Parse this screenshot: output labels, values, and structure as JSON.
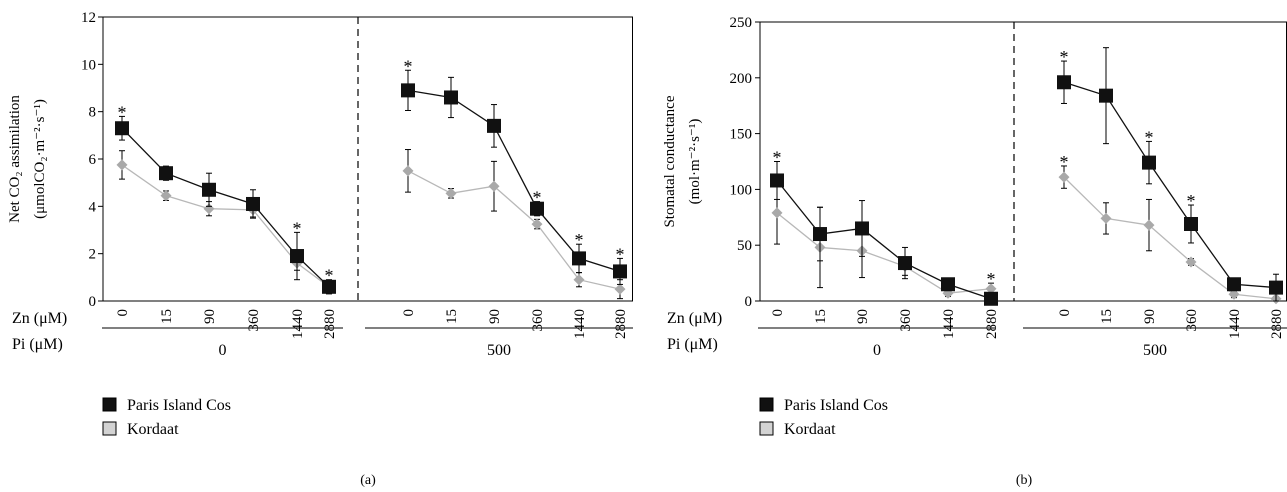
{
  "legend": [
    {
      "label": "Paris Island Cos",
      "color": "#111111"
    },
    {
      "label": "Kordaat",
      "color": "#d3d3d3"
    }
  ],
  "chart_data": [
    {
      "type": "line",
      "panel_label": "(a)",
      "ylabel_line1": "Net CO₂ assimilation",
      "ylabel_line2": "(μmolCO₂·m⁻²·s⁻¹)",
      "ylim": [
        0,
        12
      ],
      "yticks": [
        0,
        2,
        4,
        6,
        8,
        10,
        12
      ],
      "zn_label": "Zn (μM)",
      "pi_label": "Pi (μM)",
      "groups": [
        {
          "pi": "0",
          "categories": [
            "0",
            "15",
            "90",
            "360",
            "1440",
            "2880"
          ],
          "series": [
            {
              "name": "Paris Island Cos",
              "values": [
                7.3,
                5.4,
                4.7,
                4.1,
                1.9,
                0.6
              ],
              "errors": [
                0.5,
                0.3,
                0.7,
                0.6,
                1.0,
                0.3
              ]
            },
            {
              "name": "Kordaat",
              "values": [
                5.75,
                4.45,
                3.9,
                3.85,
                1.6,
                0.6
              ],
              "errors": [
                0.6,
                0.2,
                0.3,
                0.3,
                0.3,
                0.2
              ]
            }
          ],
          "significant": [
            true,
            false,
            false,
            false,
            true,
            true
          ]
        },
        {
          "pi": "500",
          "categories": [
            "0",
            "15",
            "90",
            "360",
            "1440",
            "2880"
          ],
          "series": [
            {
              "name": "Paris Island Cos",
              "values": [
                8.9,
                8.6,
                7.4,
                3.9,
                1.8,
                1.25
              ],
              "errors": [
                0.85,
                0.85,
                0.9,
                0.3,
                0.6,
                0.55
              ]
            },
            {
              "name": "Kordaat",
              "values": [
                5.5,
                4.55,
                4.85,
                3.25,
                0.9,
                0.5
              ],
              "errors": [
                0.9,
                0.2,
                1.05,
                0.2,
                0.3,
                0.4
              ]
            }
          ],
          "significant": [
            true,
            false,
            false,
            true,
            true,
            true
          ]
        }
      ]
    },
    {
      "type": "line",
      "panel_label": "(b)",
      "ylabel_line1": "Stomatal conductance",
      "ylabel_line2": "(mol·m⁻²·s⁻¹)",
      "ylim": [
        0,
        250
      ],
      "yticks": [
        0,
        50,
        100,
        150,
        200,
        250
      ],
      "zn_label": "Zn (μM)",
      "pi_label": "Pi (μM)",
      "groups": [
        {
          "pi": "0",
          "categories": [
            "0",
            "15",
            "90",
            "360",
            "1440",
            "2880"
          ],
          "series": [
            {
              "name": "Paris Island Cos",
              "values": [
                108,
                60,
                65,
                34,
                15,
                2
              ],
              "errors": [
                17,
                24,
                25,
                14,
                5,
                3
              ]
            },
            {
              "name": "Kordaat",
              "values": [
                79,
                48,
                45,
                31,
                7,
                11
              ],
              "errors": [
                28,
                36,
                24,
                8,
                3,
                5
              ]
            }
          ],
          "significant": [
            true,
            false,
            false,
            false,
            false,
            true
          ]
        },
        {
          "pi": "500",
          "categories": [
            "0",
            "15",
            "90",
            "360",
            "1440",
            "2880"
          ],
          "series": [
            {
              "name": "Paris Island Cos",
              "values": [
                196,
                184,
                124,
                69,
                15,
                12
              ],
              "errors": [
                19,
                43,
                19,
                17,
                5,
                12
              ]
            },
            {
              "name": "Kordaat",
              "values": [
                111,
                74,
                68,
                35,
                6,
                2
              ],
              "errors": [
                10,
                14,
                23,
                3,
                3,
                2
              ]
            }
          ],
          "significant": [
            true,
            false,
            true,
            true,
            false,
            false
          ]
        }
      ]
    }
  ]
}
